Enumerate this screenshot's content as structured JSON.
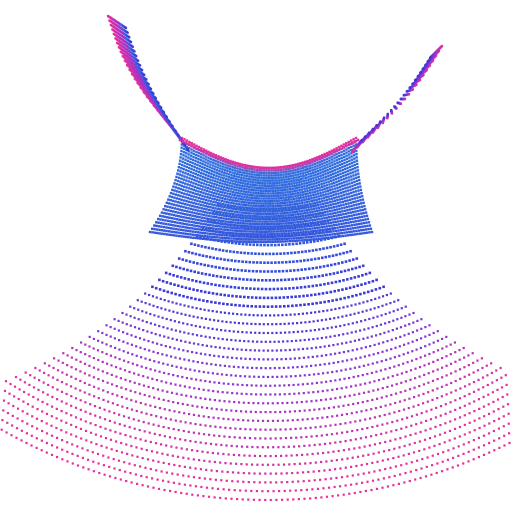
{
  "scene": {
    "subject": "parametric-dotted-surface",
    "colors": {
      "background": "#ffffff",
      "magenta": "#e8309b",
      "violet": "#8a36d8",
      "blue": "#2f6fe0",
      "royal": "#3b3ad8"
    }
  }
}
